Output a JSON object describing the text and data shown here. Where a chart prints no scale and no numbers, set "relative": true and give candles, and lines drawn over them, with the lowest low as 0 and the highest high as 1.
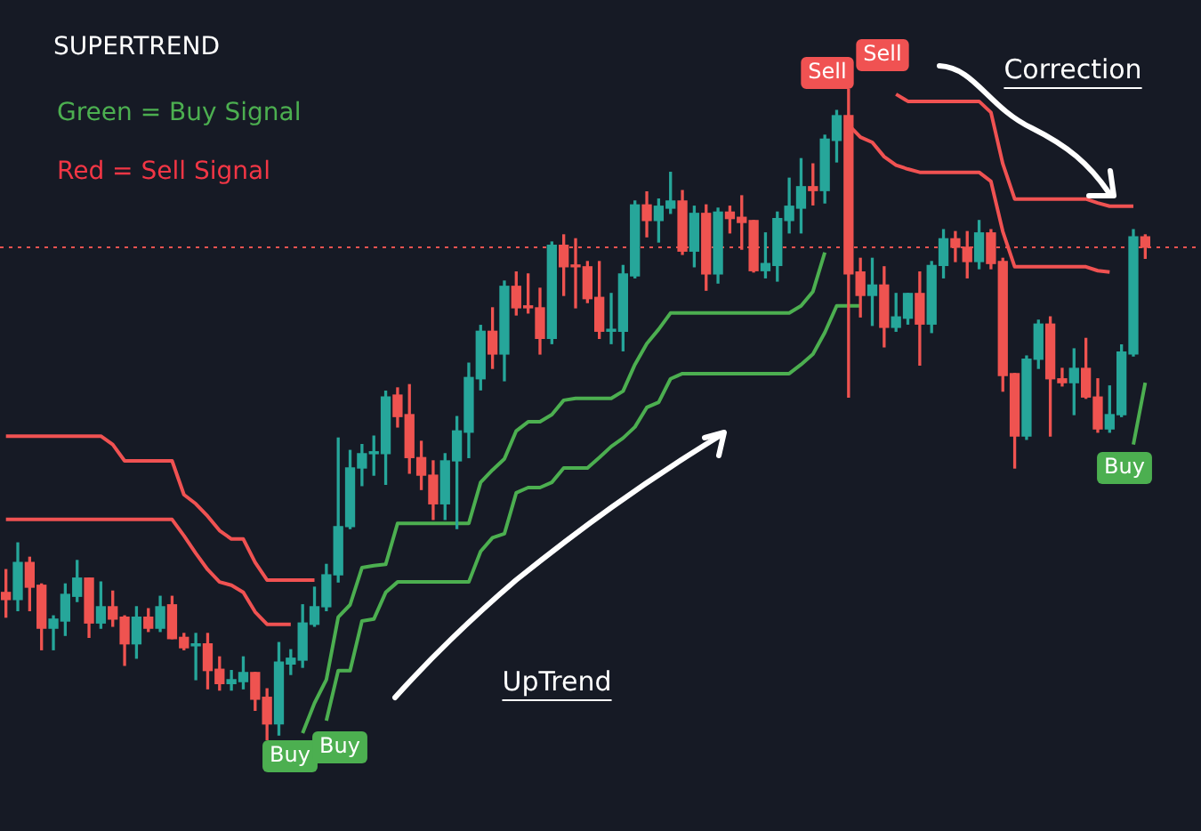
{
  "chart_data": {
    "type": "candlestick",
    "relative": true,
    "legend": false,
    "marker": "none",
    "categories": [
      null,
      null,
      null,
      null,
      null,
      null,
      null,
      null,
      null,
      null,
      null,
      null,
      null,
      null,
      null,
      null,
      null,
      null,
      null,
      null,
      null,
      null,
      null,
      null,
      null,
      null,
      null,
      null,
      null,
      null,
      null,
      null,
      null,
      null,
      null,
      null,
      null,
      null,
      null,
      null,
      null,
      null,
      null,
      null,
      null,
      null,
      null,
      null,
      null,
      null,
      null,
      null,
      null,
      null,
      null,
      null,
      null,
      null,
      null,
      null,
      null,
      null,
      null,
      null,
      null,
      null,
      null,
      null,
      null,
      null,
      null,
      null,
      null,
      null,
      null,
      null,
      null,
      null,
      null,
      null,
      null,
      null,
      null,
      null,
      null,
      null,
      null,
      null,
      null,
      null,
      null,
      null,
      null,
      null,
      null,
      null,
      null
    ],
    "ohlc": [
      [
        0.227,
        0.262,
        0.189,
        0.216
      ],
      [
        0.216,
        0.303,
        0.199,
        0.273
      ],
      [
        0.273,
        0.281,
        0.199,
        0.235
      ],
      [
        0.238,
        0.24,
        0.139,
        0.172
      ],
      [
        0.172,
        0.191,
        0.139,
        0.186
      ],
      [
        0.183,
        0.24,
        0.161,
        0.224
      ],
      [
        0.221,
        0.276,
        0.213,
        0.249
      ],
      [
        0.249,
        0.249,
        0.158,
        0.18
      ],
      [
        0.18,
        0.243,
        0.172,
        0.205
      ],
      [
        0.205,
        0.229,
        0.175,
        0.186
      ],
      [
        0.189,
        0.191,
        0.115,
        0.148
      ],
      [
        0.148,
        0.205,
        0.126,
        0.189
      ],
      [
        0.189,
        0.202,
        0.167,
        0.172
      ],
      [
        0.172,
        0.221,
        0.167,
        0.205
      ],
      [
        0.208,
        0.221,
        0.156,
        0.156
      ],
      [
        0.158,
        0.164,
        0.139,
        0.142
      ],
      [
        0.145,
        0.164,
        0.093,
        0.148
      ],
      [
        0.148,
        0.164,
        0.079,
        0.107
      ],
      [
        0.109,
        0.128,
        0.077,
        0.087
      ],
      [
        0.087,
        0.107,
        0.077,
        0.093
      ],
      [
        0.09,
        0.128,
        0.079,
        0.104
      ],
      [
        0.104,
        0.104,
        0.046,
        0.063
      ],
      [
        0.066,
        0.079,
        0,
        0.025
      ],
      [
        0.025,
        0.15,
        0.008,
        0.12
      ],
      [
        0.117,
        0.139,
        0.101,
        0.126
      ],
      [
        0.123,
        0.208,
        0.112,
        0.18
      ],
      [
        0.178,
        0.235,
        0.175,
        0.205
      ],
      [
        0.205,
        0.27,
        0.199,
        0.254
      ],
      [
        0.254,
        0.464,
        0.243,
        0.328
      ],
      [
        0.328,
        0.445,
        0.325,
        0.418
      ],
      [
        0.418,
        0.454,
        0.391,
        0.44
      ],
      [
        0.44,
        0.467,
        0.407,
        0.443
      ],
      [
        0.44,
        0.536,
        0.393,
        0.527
      ],
      [
        0.53,
        0.541,
        0.481,
        0.497
      ],
      [
        0.5,
        0.546,
        0.41,
        0.434
      ],
      [
        0.434,
        0.459,
        0.385,
        0.407
      ],
      [
        0.407,
        0.429,
        0.339,
        0.363
      ],
      [
        0.363,
        0.44,
        0.339,
        0.429
      ],
      [
        0.429,
        0.497,
        0.325,
        0.475
      ],
      [
        0.473,
        0.579,
        0.434,
        0.557
      ],
      [
        0.555,
        0.637,
        0.538,
        0.628
      ],
      [
        0.628,
        0.664,
        0.571,
        0.593
      ],
      [
        0.593,
        0.705,
        0.552,
        0.697
      ],
      [
        0.697,
        0.719,
        0.653,
        0.664
      ],
      [
        0.667,
        0.716,
        0.656,
        0.664
      ],
      [
        0.664,
        0.694,
        0.593,
        0.617
      ],
      [
        0.617,
        0.765,
        0.609,
        0.76
      ],
      [
        0.76,
        0.776,
        0.683,
        0.727
      ],
      [
        0.729,
        0.77,
        0.664,
        0.727
      ],
      [
        0.727,
        0.735,
        0.672,
        0.678
      ],
      [
        0.68,
        0.735,
        0.617,
        0.628
      ],
      [
        0.628,
        0.686,
        0.609,
        0.631
      ],
      [
        0.628,
        0.729,
        0.598,
        0.716
      ],
      [
        0.713,
        0.828,
        0.71,
        0.822
      ],
      [
        0.822,
        0.842,
        0.773,
        0.798
      ],
      [
        0.798,
        0.831,
        0.765,
        0.82
      ],
      [
        0.817,
        0.872,
        0.809,
        0.828
      ],
      [
        0.828,
        0.844,
        0.746,
        0.751
      ],
      [
        0.751,
        0.82,
        0.727,
        0.809
      ],
      [
        0.809,
        0.822,
        0.691,
        0.716
      ],
      [
        0.716,
        0.817,
        0.702,
        0.811
      ],
      [
        0.811,
        0.82,
        0.779,
        0.801
      ],
      [
        0.803,
        0.836,
        0.754,
        0.795
      ],
      [
        0.798,
        0.798,
        0.719,
        0.721
      ],
      [
        0.721,
        0.779,
        0.71,
        0.732
      ],
      [
        0.729,
        0.811,
        0.705,
        0.801
      ],
      [
        0.798,
        0.863,
        0.779,
        0.82
      ],
      [
        0.817,
        0.893,
        0.779,
        0.85
      ],
      [
        0.85,
        0.885,
        0.822,
        0.844
      ],
      [
        0.844,
        0.929,
        0.825,
        0.923
      ],
      [
        0.921,
        0.967,
        0.888,
        0.959
      ],
      [
        0.959,
        1,
        0.527,
        0.716
      ],
      [
        0.719,
        0.74,
        0.65,
        0.683
      ],
      [
        0.683,
        0.74,
        0.637,
        0.699
      ],
      [
        0.699,
        0.727,
        0.604,
        0.634
      ],
      [
        0.634,
        0.686,
        0.628,
        0.65
      ],
      [
        0.648,
        0.686,
        0.639,
        0.686
      ],
      [
        0.686,
        0.719,
        0.576,
        0.639
      ],
      [
        0.639,
        0.735,
        0.626,
        0.729
      ],
      [
        0.729,
        0.784,
        0.71,
        0.77
      ],
      [
        0.77,
        0.781,
        0.735,
        0.757
      ],
      [
        0.757,
        0.781,
        0.71,
        0.735
      ],
      [
        0.735,
        0.798,
        0.724,
        0.779
      ],
      [
        0.779,
        0.784,
        0.724,
        0.732
      ],
      [
        0.735,
        0.74,
        0.536,
        0.56
      ],
      [
        0.563,
        0.563,
        0.418,
        0.467
      ],
      [
        0.467,
        0.59,
        0.462,
        0.585
      ],
      [
        0.585,
        0.645,
        0.571,
        0.639
      ],
      [
        0.639,
        0.65,
        0.467,
        0.555
      ],
      [
        0.555,
        0.571,
        0.544,
        0.549
      ],
      [
        0.549,
        0.601,
        0.5,
        0.571
      ],
      [
        0.571,
        0.617,
        0.525,
        0.527
      ],
      [
        0.527,
        0.555,
        0.473,
        0.478
      ],
      [
        0.478,
        0.544,
        0.473,
        0.5
      ],
      [
        0.5,
        0.607,
        0.497,
        0.596
      ],
      [
        0.593,
        0.784,
        0.59,
        0.773
      ],
      [
        0.773,
        0.776,
        0.74,
        0.757
      ]
    ],
    "colors": [
      "#ef5350",
      "#26a69a",
      "#ef5350",
      "#ef5350",
      "#26a69a",
      "#26a69a",
      "#26a69a",
      "#ef5350",
      "#26a69a",
      "#ef5350",
      "#ef5350",
      "#26a69a",
      "#ef5350",
      "#26a69a",
      "#ef5350",
      "#ef5350",
      "#26a69a",
      "#ef5350",
      "#ef5350",
      "#26a69a",
      "#26a69a",
      "#ef5350",
      "#ef5350",
      "#26a69a",
      "#26a69a",
      "#26a69a",
      "#26a69a",
      "#26a69a",
      "#26a69a",
      "#26a69a",
      "#26a69a",
      "#26a69a",
      "#26a69a",
      "#ef5350",
      "#ef5350",
      "#ef5350",
      "#ef5350",
      "#26a69a",
      "#26a69a",
      "#26a69a",
      "#26a69a",
      "#ef5350",
      "#26a69a",
      "#ef5350",
      "#ef5350",
      "#ef5350",
      "#26a69a",
      "#ef5350",
      "#ef5350",
      "#ef5350",
      "#ef5350",
      "#26a69a",
      "#26a69a",
      "#26a69a",
      "#ef5350",
      "#26a69a",
      "#26a69a",
      "#ef5350",
      "#26a69a",
      "#ef5350",
      "#26a69a",
      "#ef5350",
      "#ef5350",
      "#ef5350",
      "#26a69a",
      "#26a69a",
      "#26a69a",
      "#26a69a",
      "#ef5350",
      "#26a69a",
      "#26a69a",
      "#ef5350",
      "#ef5350",
      "#26a69a",
      "#ef5350",
      "#26a69a",
      "#26a69a",
      "#ef5350",
      "#26a69a",
      "#26a69a",
      "#ef5350",
      "#ef5350",
      "#26a69a",
      "#ef5350",
      "#ef5350",
      "#ef5350",
      "#26a69a",
      "#26a69a",
      "#ef5350",
      "#ef5350",
      "#26a69a",
      "#ef5350",
      "#ef5350",
      "#26a69a",
      "#26a69a",
      "#26a69a",
      "#ef5350"
    ],
    "series": [
      {
        "type": "line",
        "color": "#f05252",
        "values": [
          0.467,
          0.467,
          0.467,
          0.467,
          0.467,
          0.467,
          0.467,
          0.467,
          0.467,
          0.454,
          0.429,
          0.429,
          0.429,
          0.429,
          0.429,
          0.377,
          0.363,
          0.344,
          0.322,
          0.309,
          0.309,
          0.273,
          0.246,
          0.246,
          0.246,
          0.246,
          0.246,
          null,
          null,
          null,
          null,
          null,
          null,
          null,
          null,
          null,
          null,
          null,
          null,
          null,
          null,
          null,
          null,
          null,
          null,
          null,
          null,
          null,
          null,
          null,
          null,
          null,
          null,
          null,
          null,
          null,
          null,
          null,
          null,
          null,
          null,
          null,
          null,
          null,
          null,
          null,
          null,
          null,
          null,
          null,
          null,
          null,
          null,
          null,
          null,
          0.992,
          0.981,
          0.981,
          0.981,
          0.981,
          0.981,
          0.981,
          0.981,
          0.964,
          0.885,
          0.831,
          0.831,
          0.831,
          0.831,
          0.831,
          0.831,
          0.831,
          0.825,
          0.82,
          0.82,
          0.82,
          null
        ]
      },
      {
        "type": "line",
        "color": "#f05252",
        "values": [
          0.339,
          0.339,
          0.339,
          0.339,
          0.339,
          0.339,
          0.339,
          0.339,
          0.339,
          0.339,
          0.339,
          0.339,
          0.339,
          0.339,
          0.339,
          0.314,
          0.287,
          0.262,
          0.243,
          0.238,
          0.227,
          0.197,
          0.178,
          0.178,
          0.178,
          null,
          null,
          null,
          null,
          null,
          null,
          null,
          null,
          null,
          null,
          null,
          null,
          null,
          null,
          null,
          null,
          null,
          null,
          null,
          null,
          null,
          null,
          null,
          null,
          null,
          null,
          null,
          null,
          null,
          null,
          null,
          null,
          null,
          null,
          null,
          null,
          null,
          null,
          null,
          null,
          null,
          null,
          null,
          null,
          null,
          null,
          0.945,
          0.926,
          0.918,
          0.896,
          0.883,
          0.877,
          0.872,
          0.872,
          0.872,
          0.872,
          0.872,
          0.872,
          0.858,
          0.781,
          0.727,
          0.727,
          0.727,
          0.727,
          0.727,
          0.727,
          0.727,
          0.721,
          0.719,
          null,
          null,
          null
        ]
      },
      {
        "type": "line",
        "color": "#4caf50",
        "values": [
          null,
          null,
          null,
          null,
          null,
          null,
          null,
          null,
          null,
          null,
          null,
          null,
          null,
          null,
          null,
          null,
          null,
          null,
          null,
          null,
          null,
          null,
          null,
          null,
          null,
          0.011,
          0.057,
          0.093,
          0.189,
          0.208,
          0.265,
          0.268,
          0.27,
          0.333,
          0.333,
          0.333,
          0.333,
          0.333,
          0.333,
          0.333,
          0.396,
          0.415,
          0.432,
          0.475,
          0.489,
          0.489,
          0.5,
          0.522,
          0.525,
          0.525,
          0.525,
          0.525,
          0.536,
          0.577,
          0.609,
          0.631,
          0.656,
          0.656,
          0.656,
          0.656,
          0.656,
          0.656,
          0.656,
          0.656,
          0.656,
          0.656,
          0.656,
          0.667,
          0.689,
          0.749,
          null,
          null,
          null,
          null,
          null,
          null,
          null,
          null,
          null,
          null,
          null,
          null,
          null,
          null,
          null,
          null,
          null,
          null,
          null,
          null,
          null,
          null,
          null,
          null,
          null,
          0.454,
          0.549
        ]
      },
      {
        "type": "line",
        "color": "#4caf50",
        "values": [
          null,
          null,
          null,
          null,
          null,
          null,
          null,
          null,
          null,
          null,
          null,
          null,
          null,
          null,
          null,
          null,
          null,
          null,
          null,
          null,
          null,
          null,
          null,
          null,
          null,
          null,
          null,
          0.03,
          0.107,
          0.107,
          0.183,
          0.186,
          0.227,
          0.243,
          0.243,
          0.243,
          0.243,
          0.243,
          0.243,
          0.243,
          0.29,
          0.311,
          0.317,
          0.38,
          0.388,
          0.388,
          0.396,
          0.418,
          0.418,
          0.418,
          0.434,
          0.451,
          0.464,
          0.481,
          0.511,
          0.519,
          0.555,
          0.563,
          0.563,
          0.563,
          0.563,
          0.563,
          0.563,
          0.563,
          0.563,
          0.563,
          0.563,
          0.577,
          0.593,
          0.626,
          0.667,
          0.667,
          0.667,
          null,
          null,
          null,
          null,
          null,
          null,
          null,
          null,
          null,
          null,
          null,
          null,
          null,
          null,
          null,
          null,
          null,
          null,
          null,
          null,
          null,
          null,
          null,
          null
        ]
      }
    ],
    "ref_lines": [
      {
        "axis": "y",
        "value": 0.757,
        "color": "#ef5350",
        "line_style": "dotted"
      }
    ],
    "annotations": [
      "SUPERTREND",
      "Green = Buy Signal",
      "Red = Sell Signal",
      "Correction",
      "UpTrend",
      "Buy",
      "Buy",
      "Sell",
      "Sell",
      "Buy"
    ]
  }
}
